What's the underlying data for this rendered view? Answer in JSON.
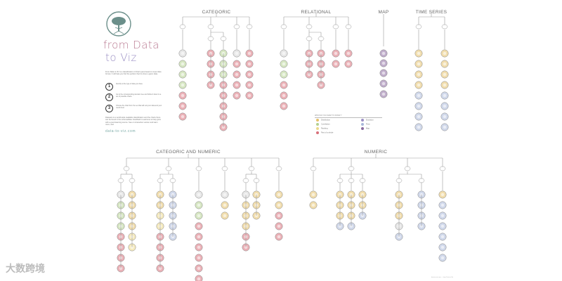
{
  "logo": {
    "line1": "from Data",
    "line2": "to Viz",
    "tree_color": "#6b8f8a"
  },
  "intro": "From Data to Viz is a classification of chart types based on input data format. It will help you find the perfect chart to show a given data.",
  "steps": [
    {
      "num": "1",
      "text": "Identify at the type of data you have."
    },
    {
      "num": "2",
      "text": "Go to the corresponding decision tree and follow it down to a set of possible charts."
    },
    {
      "num": "3",
      "text": "Choose the chart from the set that will suit your data and your needs best."
    }
  ],
  "note": "Datasets is a world-wide-readable classification and the charts there can be found in the schema/data. Feedback is welcome to help grow with a good learning source. See on interactive version and learn more, see!",
  "website": "data-to-viz.com",
  "sections": {
    "categoric": "CATEGORIC",
    "relational": "RELATIONAL",
    "map": "MAP",
    "time_series": "TIME SERIES",
    "cat_num": "CATEGORIC AND NUMERIC",
    "numeric": "NUMERIC"
  },
  "legend": {
    "title": "WHAT DO YOU WANT TO SHOW ?",
    "items": [
      {
        "label": "Distribution",
        "color": "#e6c16a"
      },
      {
        "label": "Evolution",
        "color": "#9b8fc4"
      },
      {
        "label": "Correlation",
        "color": "#b5d18f"
      },
      {
        "label": "Flow",
        "color": "#a9b8d9"
      },
      {
        "label": "Ranking",
        "color": "#ecd98a"
      },
      {
        "label": "Map",
        "color": "#8a6a9e"
      },
      {
        "label": "Part of a whole",
        "color": "#d8707a"
      }
    ]
  },
  "colors": {
    "distribution": "#e6c16a",
    "ranking": "#ecd98a",
    "correlation": "#b5d18f",
    "part": "#d8707a",
    "evolution": "#9b8fc4",
    "flow": "#a9b8d9",
    "map": "#8a6a9e",
    "line": "#9a9a9a",
    "neutral": "#d3d3d3"
  },
  "watermark": "大数跨境",
  "footer": "data-to-viz.com — from Data to Viz"
}
